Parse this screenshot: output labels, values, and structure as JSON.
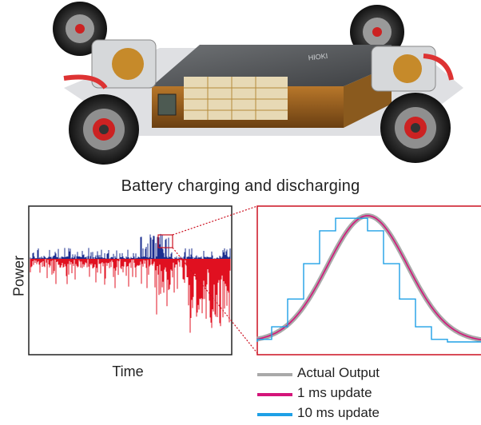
{
  "title": "Battery charging and discharging",
  "illustration": {
    "brand_text": "HIOKI"
  },
  "main_chart": {
    "xlabel": "Time",
    "ylabel": "Power",
    "colors": {
      "positive": "#1a2d8f",
      "negative": "#e01020",
      "frame": "#222222"
    }
  },
  "zoom_chart": {
    "frame_color": "#cc1020",
    "colors": {
      "actual": "#a9a9a9",
      "update_1ms": "#d4147a",
      "update_10ms": "#1ea0e6"
    }
  },
  "chart_data": {
    "type": "line",
    "series": [
      {
        "name": "Actual Output",
        "color": "#a9a9a9"
      },
      {
        "name": "1 ms update",
        "color": "#d4147a"
      },
      {
        "name": "10 ms update",
        "color": "#1ea0e6"
      }
    ],
    "x": [
      0,
      1,
      2,
      3,
      4,
      5,
      6,
      7,
      8,
      9,
      10,
      11,
      12,
      13,
      14
    ],
    "steps_10ms": [
      0.02,
      0.12,
      0.34,
      0.62,
      0.88,
      0.98,
      0.98,
      0.88,
      0.62,
      0.34,
      0.12,
      0.02,
      0.0,
      0.0,
      0.0
    ],
    "legend": "bottom-right",
    "grid": false
  }
}
